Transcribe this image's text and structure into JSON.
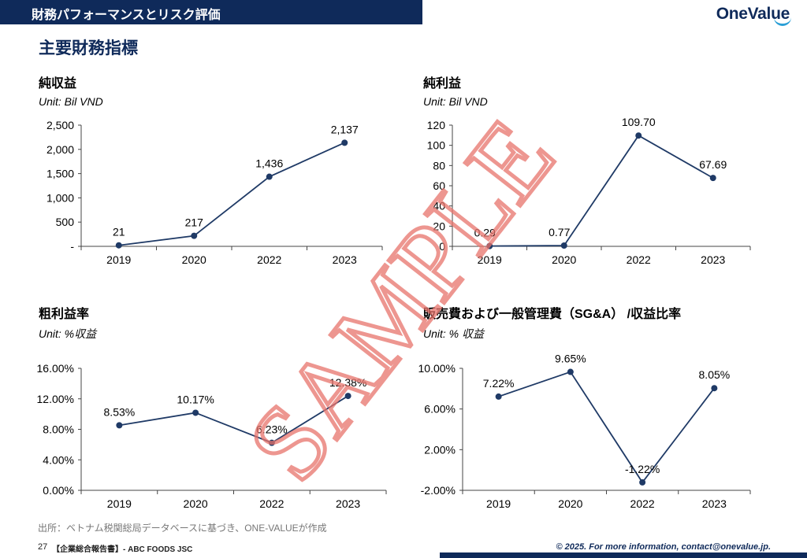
{
  "header": {
    "title": "財務パフォーマンスとリスク評価",
    "logo": "OneValue"
  },
  "page_title": "主要財務指標",
  "footer": {
    "source": "出所：ベトナム税関総局データベースに基づき、ONE-VALUEが作成",
    "page_number": "27",
    "doc": "【企業総合報告書】- ABC FOODS JSC",
    "copyright": "© 2025. For more information, contact@onevalue.jp."
  },
  "watermark": "SAMPLE",
  "colors": {
    "navy": "#0f2a5a",
    "line": "#1f3a66",
    "watermark": "#e8736b",
    "accent": "#2a9fd6"
  },
  "chart_data": [
    {
      "type": "line",
      "title": "純収益",
      "unit": "Unit: Bil VND",
      "categories": [
        "2019",
        "2020",
        "2022",
        "2023"
      ],
      "values": [
        21,
        217,
        1436,
        2137
      ],
      "labels": [
        "21",
        "217",
        "1,436",
        "2,137"
      ],
      "ylim": [
        0,
        2500
      ],
      "yticks": [
        "-",
        "500",
        "1,000",
        "1,500",
        "2,000",
        "2,500"
      ]
    },
    {
      "type": "line",
      "title": "純利益",
      "unit": "Unit: Bil VND",
      "categories": [
        "2019",
        "2020",
        "2022",
        "2023"
      ],
      "values": [
        0.29,
        0.77,
        109.7,
        67.69
      ],
      "labels": [
        "0.29",
        "0.77",
        "109.70",
        "67.69"
      ],
      "ylim": [
        0,
        120
      ],
      "yticks": [
        "0",
        "20",
        "40",
        "60",
        "80",
        "100",
        "120"
      ]
    },
    {
      "type": "line",
      "title": "粗利益率",
      "unit": "Unit: %収益",
      "categories": [
        "2019",
        "2020",
        "2022",
        "2023"
      ],
      "values": [
        8.53,
        10.17,
        6.23,
        12.38
      ],
      "labels": [
        "8.53%",
        "10.17%",
        "6.23%",
        "12.38%"
      ],
      "ylim": [
        0,
        16
      ],
      "yticks": [
        "0.00%",
        "4.00%",
        "8.00%",
        "12.00%",
        "16.00%"
      ]
    },
    {
      "type": "line",
      "title": "販売費および一般管理費（SG&A） /収益比率",
      "unit": "Unit: % 収益",
      "categories": [
        "2019",
        "2020",
        "2022",
        "2023"
      ],
      "values": [
        7.22,
        9.65,
        -1.22,
        8.05
      ],
      "labels": [
        "7.22%",
        "9.65%",
        "-1.22%",
        "8.05%"
      ],
      "ylim": [
        -2,
        10
      ],
      "yticks": [
        "-2.00%",
        "2.00%",
        "6.00%",
        "10.00%"
      ]
    }
  ]
}
